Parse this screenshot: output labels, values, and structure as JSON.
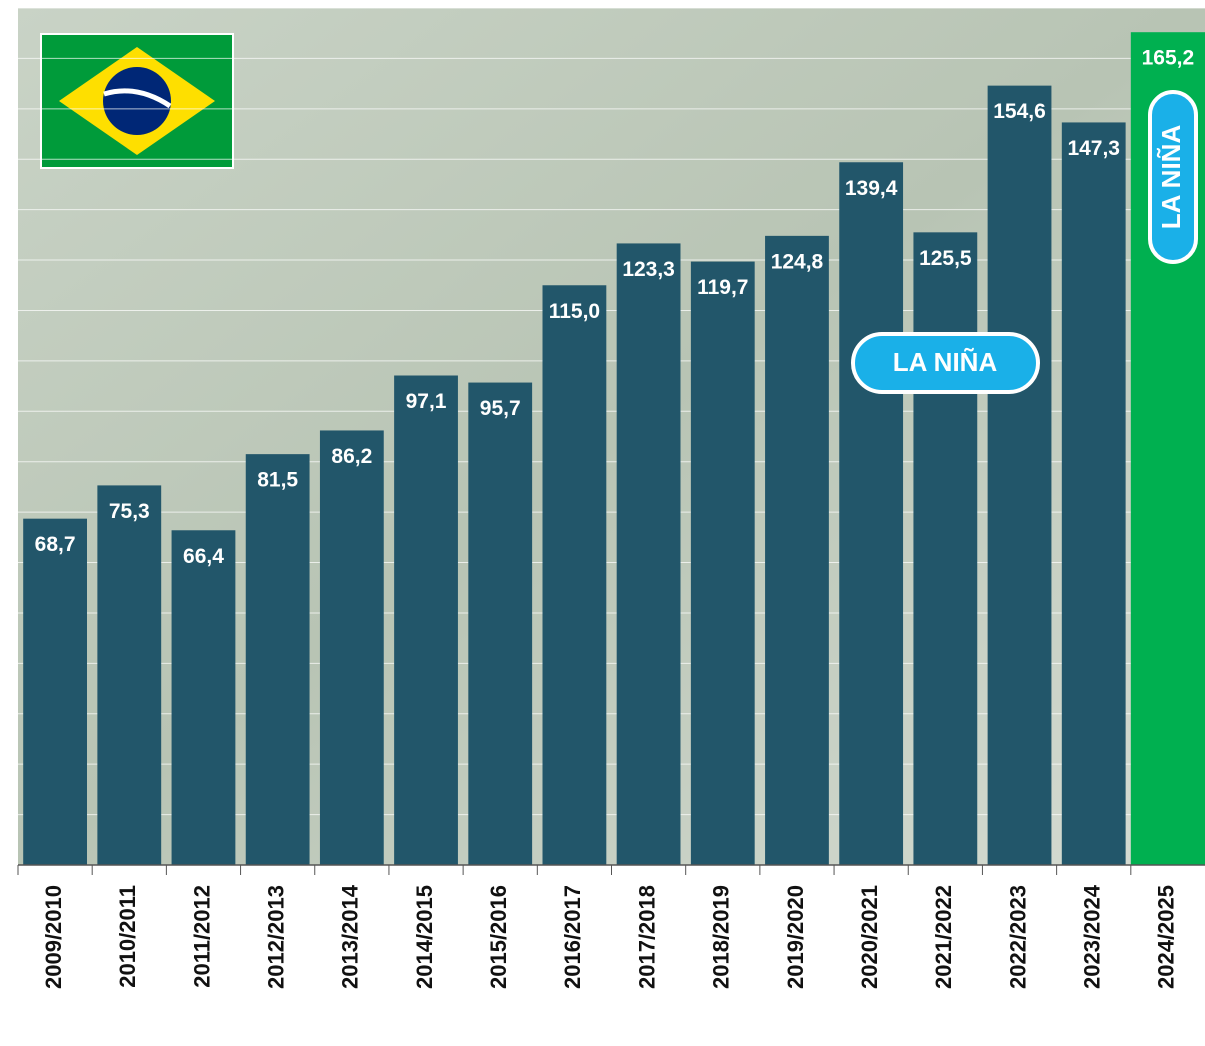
{
  "chart_data": {
    "type": "bar",
    "categories": [
      "2009/2010",
      "2010/2011",
      "2011/2012",
      "2012/2013",
      "2013/2014",
      "2014/2015",
      "2015/2016",
      "2016/2017",
      "2017/2018",
      "2018/2019",
      "2019/2020",
      "2020/2021",
      "2021/2022",
      "2022/2023",
      "2023/2024",
      "2024/2025"
    ],
    "values": [
      68.7,
      75.3,
      66.4,
      81.5,
      86.2,
      97.1,
      95.7,
      115.0,
      123.3,
      119.7,
      124.8,
      139.4,
      125.5,
      154.6,
      147.3,
      165.2
    ],
    "value_labels": [
      "68,7",
      "75,3",
      "66,4",
      "81,5",
      "86,2",
      "97,1",
      "95,7",
      "115,0",
      "123,3",
      "119,7",
      "124,8",
      "139,4",
      "125,5",
      "154,6",
      "147,3",
      "165,2"
    ],
    "color": "#22566a",
    "highlight_color": "#00b050",
    "highlight_index": 15,
    "ylim": [
      0,
      170
    ],
    "yticks": [
      0,
      10,
      20,
      30,
      40,
      50,
      60,
      70,
      80,
      90,
      100,
      110,
      120,
      130,
      140,
      150,
      160,
      170
    ],
    "grid": true,
    "annotations": [
      "LA NIÑA",
      "LA NIÑA"
    ]
  }
}
